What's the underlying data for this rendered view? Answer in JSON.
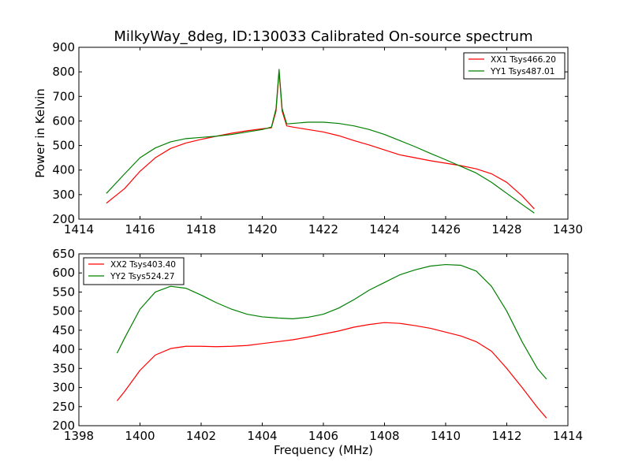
{
  "chart_data": [
    {
      "type": "line",
      "title": "MilkyWay_8deg, ID:130033 Calibrated On-source spectrum",
      "xlabel": "",
      "ylabel": "Power in Kelvin",
      "xlim": [
        1414,
        1430
      ],
      "ylim": [
        200,
        900
      ],
      "xticks": [
        1414,
        1416,
        1418,
        1420,
        1422,
        1424,
        1426,
        1428,
        1430
      ],
      "yticks": [
        200,
        300,
        400,
        500,
        600,
        700,
        800,
        900
      ],
      "legend_position": "top-right",
      "series": [
        {
          "name": "XX1 Tsys466.20",
          "color": "#ff0000",
          "x": [
            1414.9,
            1415.5,
            1416.0,
            1416.5,
            1417.0,
            1417.5,
            1418.0,
            1418.5,
            1419.0,
            1419.5,
            1420.0,
            1420.3,
            1420.45,
            1420.55,
            1420.65,
            1420.8,
            1421.0,
            1421.5,
            1422.0,
            1422.5,
            1423.0,
            1423.5,
            1424.0,
            1424.5,
            1425.0,
            1425.5,
            1426.0,
            1426.5,
            1427.0,
            1427.5,
            1428.0,
            1428.5,
            1428.9
          ],
          "y": [
            265,
            325,
            395,
            450,
            488,
            510,
            525,
            538,
            550,
            560,
            568,
            572,
            640,
            800,
            640,
            580,
            575,
            565,
            555,
            540,
            520,
            502,
            482,
            462,
            450,
            438,
            428,
            418,
            405,
            385,
            350,
            295,
            242
          ]
        },
        {
          "name": "YY1 Tsys487.01",
          "color": "#008000",
          "x": [
            1414.9,
            1415.5,
            1416.0,
            1416.5,
            1417.0,
            1417.5,
            1418.0,
            1418.5,
            1419.0,
            1419.5,
            1420.0,
            1420.3,
            1420.45,
            1420.55,
            1420.65,
            1420.8,
            1421.0,
            1421.5,
            1422.0,
            1422.5,
            1423.0,
            1423.5,
            1424.0,
            1424.5,
            1425.0,
            1425.5,
            1426.0,
            1426.5,
            1427.0,
            1427.5,
            1428.0,
            1428.5,
            1428.9
          ],
          "y": [
            305,
            385,
            450,
            490,
            515,
            528,
            533,
            538,
            545,
            555,
            565,
            575,
            650,
            810,
            650,
            588,
            590,
            595,
            595,
            590,
            580,
            565,
            545,
            520,
            495,
            468,
            442,
            415,
            388,
            350,
            305,
            260,
            225
          ]
        }
      ]
    },
    {
      "type": "line",
      "title": "",
      "xlabel": "Frequency (MHz)",
      "ylabel": "",
      "xlim": [
        1398,
        1414
      ],
      "ylim": [
        200,
        650
      ],
      "xticks": [
        1398,
        1400,
        1402,
        1404,
        1406,
        1408,
        1410,
        1412,
        1414
      ],
      "yticks": [
        200,
        250,
        300,
        350,
        400,
        450,
        500,
        550,
        600,
        650
      ],
      "legend_position": "top-left",
      "series": [
        {
          "name": "XX2 Tsys403.40",
          "color": "#ff0000",
          "x": [
            1399.25,
            1399.5,
            1400.0,
            1400.5,
            1401.0,
            1401.5,
            1402.0,
            1402.5,
            1403.0,
            1403.5,
            1404.0,
            1404.5,
            1405.0,
            1405.5,
            1406.0,
            1406.5,
            1407.0,
            1407.5,
            1408.0,
            1408.5,
            1409.0,
            1409.5,
            1410.0,
            1410.5,
            1411.0,
            1411.5,
            1412.0,
            1412.5,
            1413.0,
            1413.3
          ],
          "y": [
            265,
            290,
            345,
            385,
            402,
            408,
            408,
            407,
            408,
            410,
            415,
            420,
            425,
            432,
            440,
            448,
            458,
            465,
            470,
            468,
            462,
            455,
            445,
            435,
            420,
            395,
            350,
            300,
            248,
            220
          ]
        },
        {
          "name": "YY2 Tsys524.27",
          "color": "#008000",
          "x": [
            1399.25,
            1399.5,
            1400.0,
            1400.5,
            1401.0,
            1401.5,
            1402.0,
            1402.5,
            1403.0,
            1403.5,
            1404.0,
            1404.5,
            1405.0,
            1405.5,
            1406.0,
            1406.5,
            1407.0,
            1407.5,
            1408.0,
            1408.5,
            1409.0,
            1409.5,
            1410.0,
            1410.5,
            1411.0,
            1411.5,
            1412.0,
            1412.5,
            1413.0,
            1413.3
          ],
          "y": [
            390,
            430,
            505,
            550,
            565,
            560,
            542,
            522,
            505,
            492,
            485,
            482,
            480,
            484,
            492,
            508,
            530,
            555,
            575,
            595,
            608,
            618,
            622,
            620,
            605,
            565,
            500,
            420,
            350,
            322
          ]
        }
      ]
    }
  ]
}
